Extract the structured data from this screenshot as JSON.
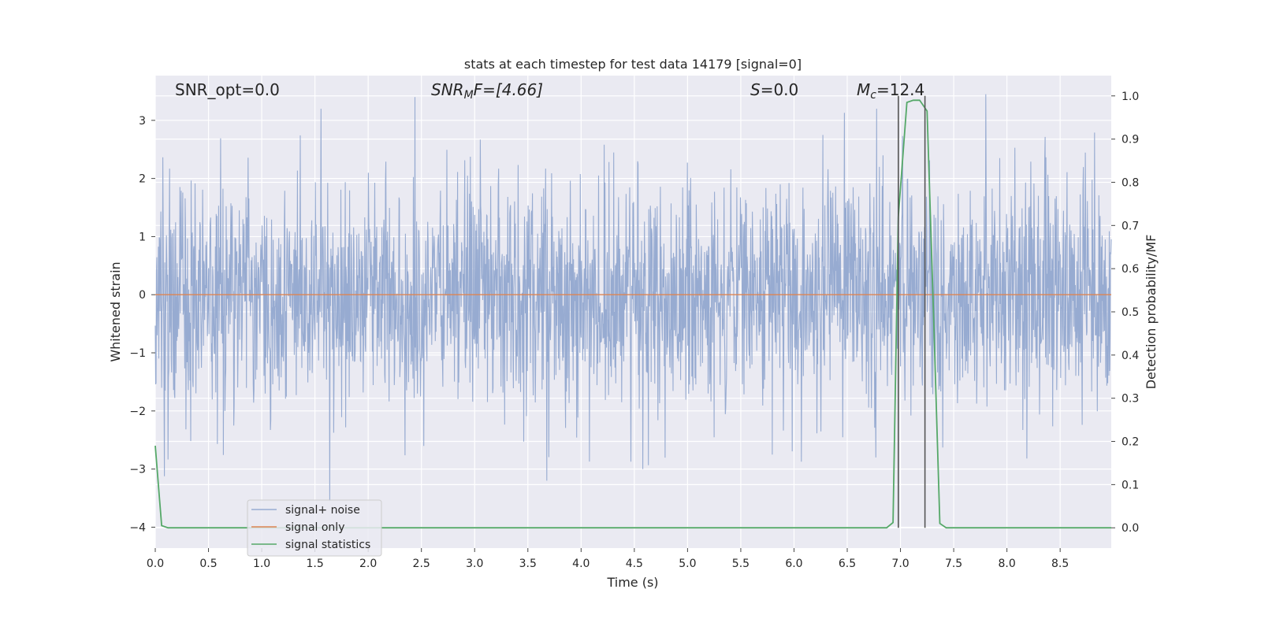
{
  "chart_data": {
    "type": "line",
    "title": "stats at each timestep for test data 14179 [signal=0]",
    "xlabel": "Time (s)",
    "ylabel_left": "Whitened strain",
    "ylabel_right": "Detection probability/MF",
    "xlim": [
      0.0,
      8.98
    ],
    "ylim_left": [
      -4.36,
      3.77
    ],
    "ylim_right": [
      -0.047,
      1.047
    ],
    "grid": true,
    "xticks": [
      "0.0",
      "0.5",
      "1.0",
      "1.5",
      "2.0",
      "2.5",
      "3.0",
      "3.5",
      "4.0",
      "4.5",
      "5.0",
      "5.5",
      "6.0",
      "6.5",
      "7.0",
      "7.5",
      "8.0",
      "8.5"
    ],
    "yticks_left": [
      "3",
      "2",
      "1",
      "0",
      "−1",
      "−2",
      "−3",
      "−4"
    ],
    "yticks_right": [
      "1.0",
      "0.9",
      "0.8",
      "0.7",
      "0.6",
      "0.5",
      "0.4",
      "0.3",
      "0.2",
      "0.1",
      "0.0"
    ],
    "annotations": {
      "snr_opt": "SNR_opt=0.0",
      "snr_mf_main": "SNR",
      "snr_mf_sub": "M",
      "snr_mf_rest": "F=[4.66]",
      "s_main": "S",
      "s_rest": "=0.0",
      "mc_main": "M",
      "mc_sub": "c",
      "mc_rest": "=12.4"
    },
    "legend": {
      "placement": "lower-left",
      "entries": [
        "signal+ noise",
        "signal only",
        "signal statistics"
      ]
    },
    "colors": {
      "noise": "#97abd1",
      "signal": "#dd8452",
      "stats": "#55a868",
      "vline": "#555555",
      "background": "#eaeaf2",
      "grid": "#ffffff"
    },
    "series": [
      {
        "name": "signal+ noise",
        "axis": "left",
        "style": "gaussian noise, std≈1, extremes≈3.5 at 2.44 s and -3.5 at 1.64 s",
        "std": 1.0,
        "extremes": [
          [
            2.44,
            3.4
          ],
          [
            7.8,
            3.45
          ],
          [
            1.64,
            -3.55
          ],
          [
            4.58,
            -3.0
          ],
          [
            6.77,
            -2.8
          ]
        ]
      },
      {
        "name": "signal only",
        "axis": "left",
        "x": [
          0.0,
          8.98
        ],
        "y": [
          0.0,
          0.0
        ]
      },
      {
        "name": "signal statistics",
        "axis": "right",
        "x": [
          0.0,
          0.06,
          0.12,
          0.5,
          1.0,
          2.0,
          3.0,
          4.0,
          5.0,
          6.0,
          6.5,
          6.87,
          6.93,
          6.98,
          7.06,
          7.12,
          7.18,
          7.25,
          7.31,
          7.37,
          7.43,
          7.5,
          8.0,
          8.5,
          8.98
        ],
        "y": [
          0.19,
          0.005,
          0.0,
          0.0,
          0.0,
          0.0,
          0.0,
          0.0,
          0.0,
          0.0,
          0.0,
          0.0,
          0.012,
          0.72,
          0.985,
          0.99,
          0.99,
          0.965,
          0.5,
          0.01,
          0.0,
          0.0,
          0.0,
          0.0,
          0.0
        ]
      }
    ],
    "vlines_x": [
      6.98,
      7.23
    ]
  }
}
